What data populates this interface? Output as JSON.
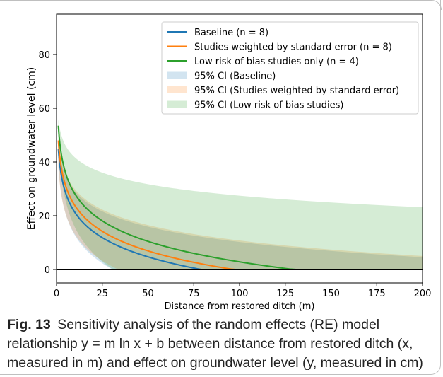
{
  "chart_data": {
    "type": "line",
    "title": "",
    "xlabel": "Distance from restored ditch (m)",
    "ylabel": "Effect on groundwater level (cm)",
    "xlim": [
      0,
      200
    ],
    "ylim": [
      -5,
      95
    ],
    "xticks": [
      0,
      25,
      50,
      75,
      100,
      125,
      150,
      175,
      200
    ],
    "yticks": [
      0,
      20,
      40,
      60,
      80
    ],
    "grid": false,
    "legend_position": "top-right",
    "reference_line": {
      "y": 0,
      "color": "#000000"
    },
    "series": [
      {
        "name": "Baseline (n = 8)",
        "color": "#1f77b4",
        "x_start": 1,
        "m": -10.3,
        "b": 45,
        "lower_at_x1": 39,
        "upper_at_x1": 48,
        "lower_m": -11.4,
        "upper_m": -8.2
      },
      {
        "name": "Studies weighted by standard error (n = 8)",
        "color": "#ff7f0e",
        "x_start": 1,
        "m": -10.5,
        "b": 48,
        "lower_at_x1": 38,
        "upper_at_x1": 49,
        "lower_m": -10.8,
        "upper_m": -8.3
      },
      {
        "name": "Low risk of bias studies only (n = 4)",
        "color": "#2ca02c",
        "x_start": 1,
        "m": -11.0,
        "b": 53.5,
        "lower_at_x1": 48,
        "upper_at_x1": 56,
        "lower_m": -14.0,
        "upper_m": -6.2
      }
    ],
    "bands": [
      {
        "name": "95% CI (Baseline)",
        "color": "#1f77b4",
        "opacity": 0.2
      },
      {
        "name": "95% CI (Studies weighted by standard error)",
        "color": "#ff7f0e",
        "opacity": 0.2
      },
      {
        "name": "95% CI (Low risk of bias studies)",
        "color": "#2ca02c",
        "opacity": 0.2
      }
    ]
  },
  "caption": {
    "label": "Fig. 13",
    "text": "Sensitivity analysis of the random effects (RE) model relationship y = m ln x + b between distance from restored ditch (x, measured in m) and effect on groundwater level (y, measured in cm)"
  }
}
